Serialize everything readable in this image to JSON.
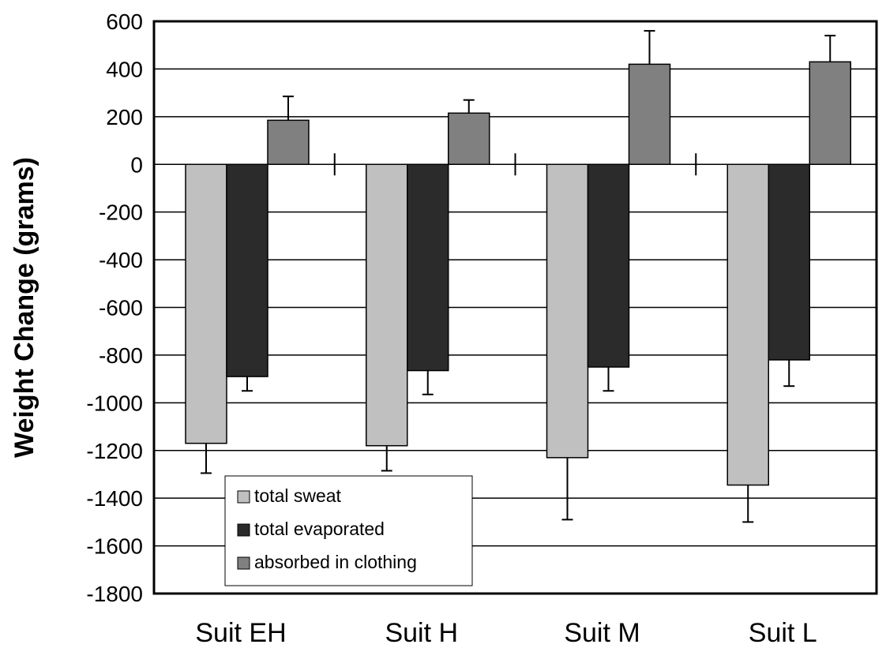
{
  "chart_data": {
    "type": "bar",
    "title": "",
    "xlabel": "",
    "ylabel": "Weight Change (grams)",
    "ylim": [
      -1800,
      600
    ],
    "yticks": [
      600,
      400,
      200,
      0,
      -200,
      -400,
      -600,
      -800,
      -1000,
      -1200,
      -1400,
      -1600,
      -1800
    ],
    "grid": true,
    "legend_position": "bottom-left",
    "categories": [
      "Suit EH",
      "Suit H",
      "Suit M",
      "Suit L"
    ],
    "series": [
      {
        "name": "total sweat",
        "color": "#c0c0c0",
        "values": [
          -1170,
          -1180,
          -1230,
          -1345
        ],
        "errors": [
          125,
          105,
          260,
          155
        ]
      },
      {
        "name": "total evaporated",
        "color": "#2b2b2b",
        "values": [
          -890,
          -865,
          -850,
          -820
        ],
        "errors": [
          60,
          100,
          100,
          110
        ]
      },
      {
        "name": "absorbed in clothing",
        "color": "#808080",
        "values": [
          185,
          215,
          420,
          430
        ],
        "errors": [
          100,
          55,
          140,
          110
        ]
      }
    ]
  }
}
